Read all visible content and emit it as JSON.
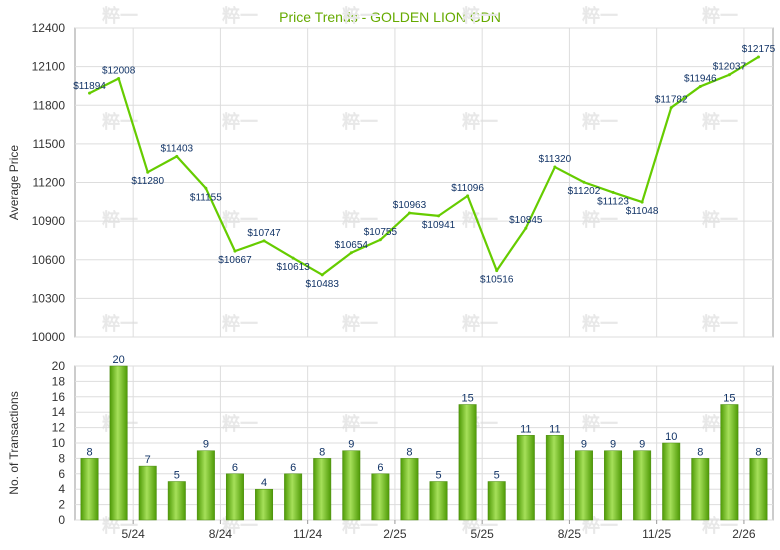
{
  "chart_data": [
    {
      "type": "line",
      "title": "Price Trends - GOLDEN LION GDN",
      "ylabel": "Average Price",
      "ylim": [
        10000,
        12400
      ],
      "yticks": [
        10000,
        10300,
        10600,
        10900,
        11200,
        11500,
        11800,
        12100,
        12400
      ],
      "xticks": [
        "5/24",
        "8/24",
        "11/24",
        "2/25",
        "5/25",
        "8/25",
        "11/25",
        "2/26"
      ],
      "values": [
        11894,
        12008,
        11280,
        11403,
        11155,
        10667,
        10747,
        10613,
        10483,
        10654,
        10755,
        10963,
        10941,
        11096,
        10516,
        10845,
        11320,
        11202,
        11123,
        11048,
        11782,
        11946,
        12037,
        12175
      ],
      "value_labels": [
        "$11894",
        "$12008",
        "$11280",
        "$11403",
        "$11155",
        "$10667",
        "$10747",
        "$10613",
        "$10483",
        "$10654",
        "$10755",
        "$10963",
        "$10941",
        "$11096",
        "$10516",
        "$10845",
        "$11320",
        "$11202",
        "$11123",
        "$11048",
        "$11782",
        "$11946",
        "$12037",
        "$12175"
      ],
      "color": "#66cc00",
      "grid": true
    },
    {
      "type": "bar",
      "ylabel": "No. of Transactions",
      "ylim": [
        0,
        20
      ],
      "yticks": [
        0,
        2,
        4,
        6,
        8,
        10,
        12,
        14,
        16,
        18,
        20
      ],
      "xticks": [
        "5/24",
        "8/24",
        "11/24",
        "2/25",
        "5/25",
        "8/25",
        "11/25",
        "2/26"
      ],
      "values": [
        8,
        20,
        7,
        5,
        9,
        6,
        4,
        6,
        8,
        9,
        6,
        8,
        5,
        15,
        5,
        11,
        11,
        9,
        9,
        9,
        10,
        8,
        15,
        8
      ],
      "color": "#66bb11",
      "grid": true
    }
  ],
  "watermark": "粹一"
}
